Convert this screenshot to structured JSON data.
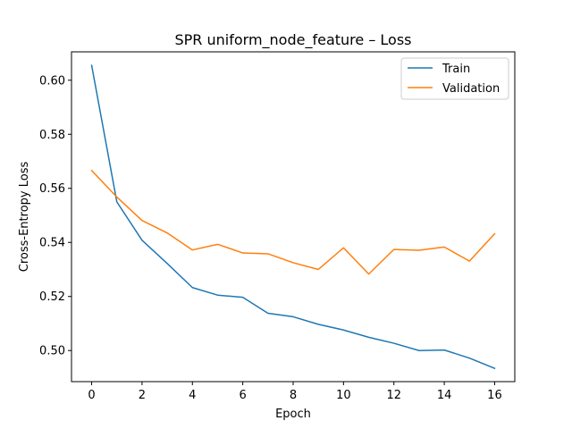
{
  "chart_data": {
    "type": "line",
    "title": "SPR uniform_node_feature – Loss",
    "xlabel": "Epoch",
    "ylabel": "Cross-Entropy Loss",
    "x": [
      0,
      1,
      2,
      3,
      4,
      5,
      6,
      7,
      8,
      9,
      10,
      11,
      12,
      13,
      14,
      15,
      16
    ],
    "xlim": [
      -0.8,
      16.8
    ],
    "ylim": [
      0.4885,
      0.6105
    ],
    "xticks": [
      0,
      2,
      4,
      6,
      8,
      10,
      12,
      14,
      16
    ],
    "xtick_labels": [
      "0",
      "2",
      "4",
      "6",
      "8",
      "10",
      "12",
      "14",
      "16"
    ],
    "yticks": [
      0.5,
      0.52,
      0.54,
      0.56,
      0.58,
      0.6
    ],
    "ytick_labels": [
      "0.50",
      "0.52",
      "0.54",
      "0.56",
      "0.58",
      "0.60"
    ],
    "grid": false,
    "legend_position": "top-right",
    "series": [
      {
        "name": "Train",
        "color": "#1f77b4",
        "values": [
          0.6055,
          0.555,
          0.5408,
          0.5322,
          0.5233,
          0.5205,
          0.5197,
          0.5138,
          0.5125,
          0.5097,
          0.5076,
          0.5049,
          0.5027,
          0.5,
          0.5002,
          0.4972,
          0.4934
        ]
      },
      {
        "name": "Validation",
        "color": "#ff7f0e",
        "values": [
          0.5666,
          0.5568,
          0.5481,
          0.5435,
          0.5372,
          0.5393,
          0.5361,
          0.5358,
          0.5325,
          0.53,
          0.538,
          0.5283,
          0.5374,
          0.5371,
          0.5383,
          0.5331,
          0.5432
        ]
      }
    ]
  }
}
